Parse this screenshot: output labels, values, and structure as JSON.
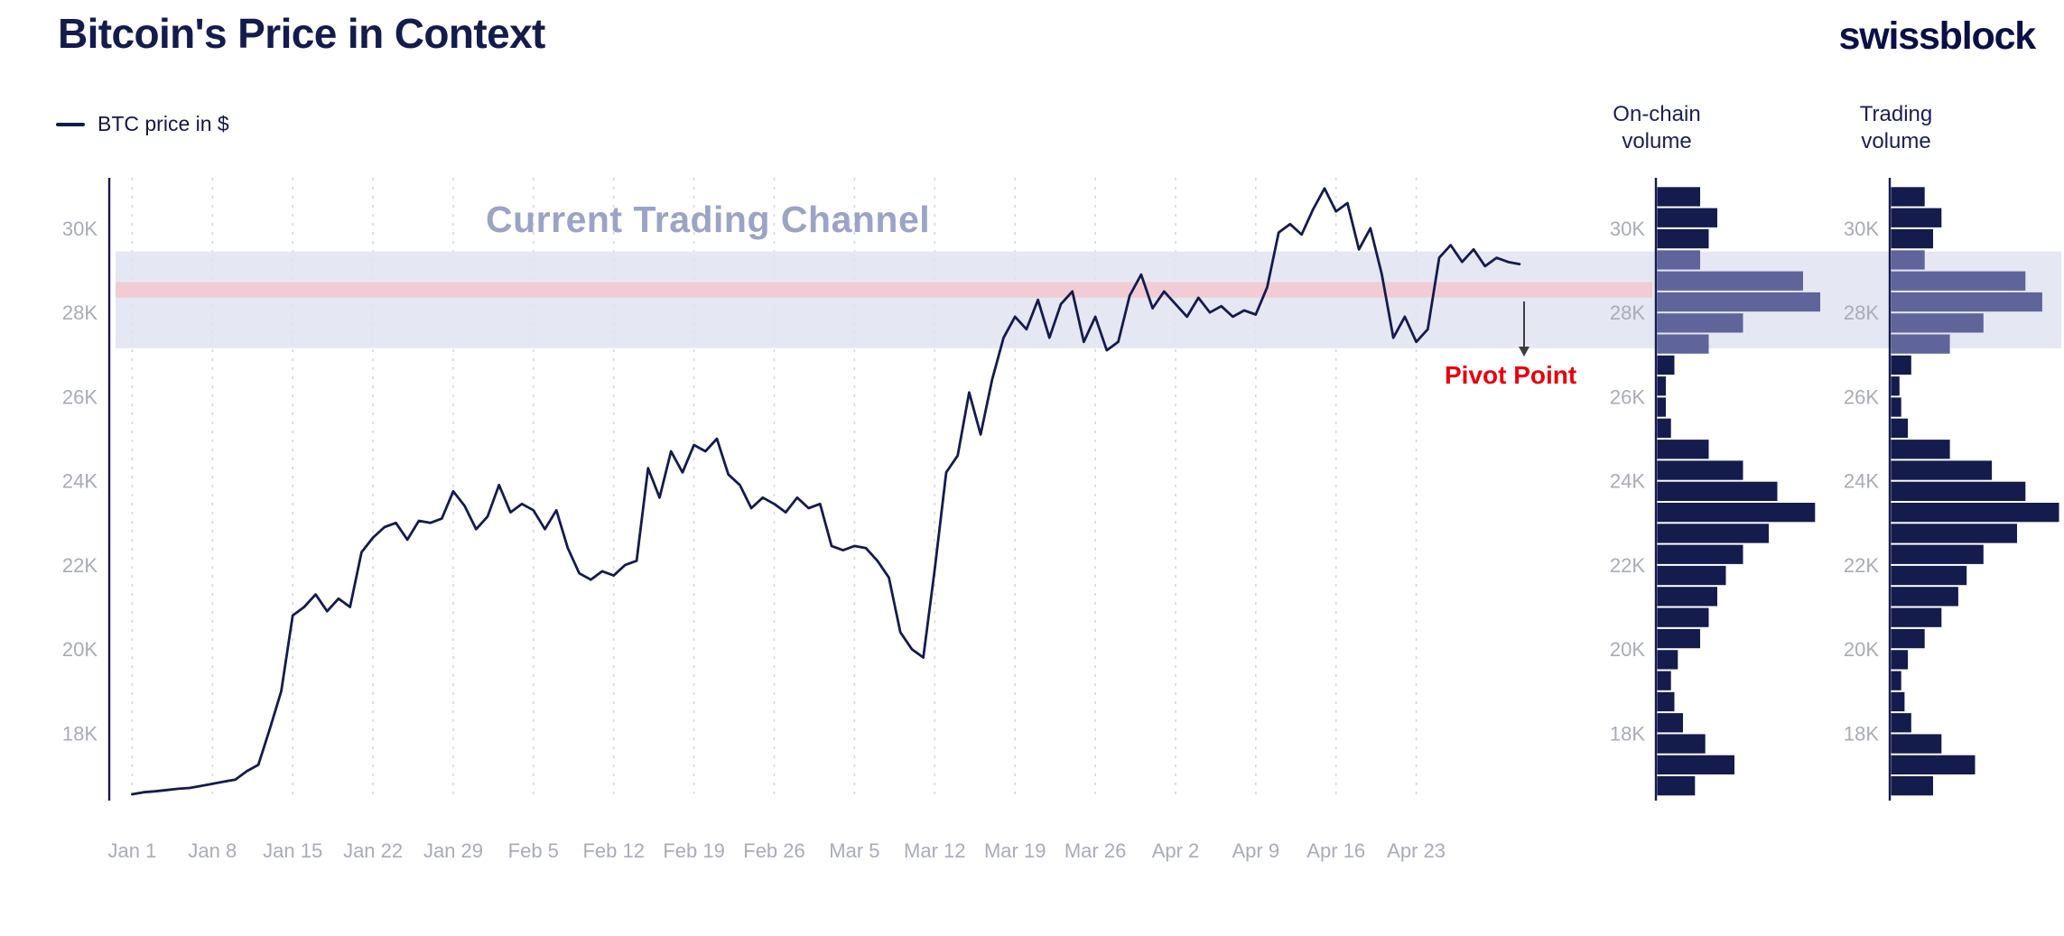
{
  "header": {
    "title": "Bitcoin's Price in Context",
    "brand": "swissblock"
  },
  "legend": {
    "series_label": "BTC price in $"
  },
  "annotations": {
    "channel_label": "Current Trading Channel",
    "pivot_label": "Pivot Point"
  },
  "panels": {
    "onchain": {
      "title_line1": "On-chain",
      "title_line2": "volume"
    },
    "trading": {
      "title_line1": "Trading",
      "title_line2": "volume"
    }
  },
  "colors": {
    "navy": "#141B4D",
    "slate": "#5F649B",
    "channel_band": "#E1E4F0",
    "pivot_band": "#F2C9D0",
    "pivot_text": "#E8000D",
    "axis_text": "#A8ACB5",
    "channel_text": "#9BA3C6",
    "gridline": "#D7D8DE",
    "arrow": "#3C3C3C"
  },
  "chart_data": [
    {
      "type": "line",
      "name": "btc-price",
      "title": "Bitcoin's Price in Context",
      "units": "USD thousands",
      "x_unit": "days since Jan 1",
      "ylim": [
        16.4,
        31.2
      ],
      "xlim": [
        -2,
        124
      ],
      "y_ticks": [
        18,
        20,
        22,
        24,
        26,
        28,
        30
      ],
      "y_unit": "K",
      "x_ticks": [
        {
          "day": 0,
          "label": "Jan 1"
        },
        {
          "day": 7,
          "label": "Jan 8"
        },
        {
          "day": 14,
          "label": "Jan 15"
        },
        {
          "day": 21,
          "label": "Jan 22"
        },
        {
          "day": 28,
          "label": "Jan 29"
        },
        {
          "day": 35,
          "label": "Feb 5"
        },
        {
          "day": 42,
          "label": "Feb 12"
        },
        {
          "day": 49,
          "label": "Feb 19"
        },
        {
          "day": 56,
          "label": "Feb 26"
        },
        {
          "day": 63,
          "label": "Mar 5"
        },
        {
          "day": 70,
          "label": "Mar 12"
        },
        {
          "day": 77,
          "label": "Mar 19"
        },
        {
          "day": 84,
          "label": "Mar 26"
        },
        {
          "day": 91,
          "label": "Apr 2"
        },
        {
          "day": 98,
          "label": "Apr 9"
        },
        {
          "day": 105,
          "label": "Apr 16"
        },
        {
          "day": 112,
          "label": "Apr 23"
        }
      ],
      "bands": [
        {
          "label": "Current Trading Channel",
          "y_from": 27.15,
          "y_to": 29.45
        },
        {
          "label": "Pivot Point",
          "y_from": 28.35,
          "y_to": 28.72
        }
      ],
      "series": [
        {
          "name": "BTC price in $",
          "color": "#141B4D",
          "x": [
            0,
            1,
            2,
            3,
            4,
            5,
            6,
            7,
            8,
            9,
            10,
            11,
            12,
            13,
            14,
            15,
            16,
            17,
            18,
            19,
            20,
            21,
            22,
            23,
            24,
            25,
            26,
            27,
            28,
            29,
            30,
            31,
            32,
            33,
            34,
            35,
            36,
            37,
            38,
            39,
            40,
            41,
            42,
            43,
            44,
            45,
            46,
            47,
            48,
            49,
            50,
            51,
            52,
            53,
            54,
            55,
            56,
            57,
            58,
            59,
            60,
            61,
            62,
            63,
            64,
            65,
            66,
            67,
            68,
            69,
            70,
            71,
            72,
            73,
            74,
            75,
            76,
            77,
            78,
            79,
            80,
            81,
            82,
            83,
            84,
            85,
            86,
            87,
            88,
            89,
            90,
            91,
            92,
            93,
            94,
            95,
            96,
            97,
            98,
            99,
            100,
            101,
            102,
            103,
            104,
            105,
            106,
            107,
            108,
            109,
            110,
            111,
            112,
            113,
            114,
            115,
            116,
            117,
            118,
            119,
            120,
            121
          ],
          "values": [
            16.55,
            16.6,
            16.62,
            16.65,
            16.68,
            16.7,
            16.75,
            16.8,
            16.85,
            16.9,
            17.1,
            17.25,
            18.1,
            19.0,
            20.8,
            21.0,
            21.3,
            20.9,
            21.2,
            21.0,
            22.3,
            22.65,
            22.9,
            23.0,
            22.6,
            23.05,
            23.0,
            23.1,
            23.75,
            23.4,
            22.85,
            23.15,
            23.9,
            23.25,
            23.45,
            23.3,
            22.85,
            23.3,
            22.4,
            21.8,
            21.65,
            21.85,
            21.75,
            22.0,
            22.1,
            24.3,
            23.6,
            24.7,
            24.2,
            24.85,
            24.7,
            25.0,
            24.15,
            23.9,
            23.35,
            23.6,
            23.45,
            23.25,
            23.6,
            23.35,
            23.45,
            22.45,
            22.35,
            22.45,
            22.4,
            22.1,
            21.7,
            20.4,
            20.0,
            19.8,
            21.9,
            24.2,
            24.6,
            26.1,
            25.1,
            26.4,
            27.4,
            27.9,
            27.6,
            28.3,
            27.4,
            28.2,
            28.5,
            27.3,
            27.9,
            27.1,
            27.3,
            28.4,
            28.9,
            28.1,
            28.5,
            28.2,
            27.9,
            28.35,
            28.0,
            28.15,
            27.9,
            28.05,
            27.95,
            28.6,
            29.9,
            30.1,
            29.85,
            30.45,
            30.95,
            30.4,
            30.6,
            29.5,
            30.0,
            28.9,
            27.4,
            27.9,
            27.3,
            27.6,
            29.3,
            29.6,
            29.2,
            29.5,
            29.1,
            29.3,
            29.2,
            29.15
          ]
        }
      ]
    },
    {
      "type": "bar",
      "orientation": "horizontal",
      "title": "On-chain volume",
      "units": "relative volume (0-1) by price bucket, USD thousands",
      "y_ticks": [
        18,
        20,
        22,
        24,
        26,
        28,
        30
      ],
      "highlight_range": [
        27.15,
        29.45
      ],
      "price_bucket_centers": [
        16.75,
        17.25,
        17.75,
        18.25,
        18.75,
        19.25,
        19.75,
        20.25,
        20.75,
        21.25,
        21.75,
        22.25,
        22.75,
        23.25,
        23.75,
        24.25,
        24.75,
        25.25,
        25.75,
        26.25,
        26.75,
        27.25,
        27.75,
        28.25,
        28.75,
        29.25,
        29.75,
        30.25,
        30.75
      ],
      "relative_volume": [
        0.22,
        0.45,
        0.28,
        0.15,
        0.1,
        0.08,
        0.12,
        0.25,
        0.3,
        0.35,
        0.4,
        0.5,
        0.65,
        0.92,
        0.7,
        0.5,
        0.3,
        0.08,
        0.05,
        0.05,
        0.1,
        0.3,
        0.5,
        0.95,
        0.85,
        0.25,
        0.3,
        0.35,
        0.25
      ]
    },
    {
      "type": "bar",
      "orientation": "horizontal",
      "title": "Trading volume",
      "units": "relative volume (0-1) by price bucket, USD thousands",
      "y_ticks": [
        18,
        20,
        22,
        24,
        26,
        28,
        30
      ],
      "highlight_range": [
        27.15,
        29.45
      ],
      "price_bucket_centers": [
        16.75,
        17.25,
        17.75,
        18.25,
        18.75,
        19.25,
        19.75,
        20.25,
        20.75,
        21.25,
        21.75,
        22.25,
        22.75,
        23.25,
        23.75,
        24.25,
        24.75,
        25.25,
        25.75,
        26.25,
        26.75,
        27.25,
        27.75,
        28.25,
        28.75,
        29.25,
        29.75,
        30.25,
        30.75
      ],
      "relative_volume": [
        0.25,
        0.5,
        0.3,
        0.12,
        0.08,
        0.06,
        0.1,
        0.2,
        0.3,
        0.4,
        0.45,
        0.55,
        0.75,
        1.0,
        0.8,
        0.6,
        0.35,
        0.1,
        0.06,
        0.05,
        0.12,
        0.35,
        0.55,
        0.9,
        0.8,
        0.2,
        0.25,
        0.3,
        0.2
      ]
    }
  ]
}
